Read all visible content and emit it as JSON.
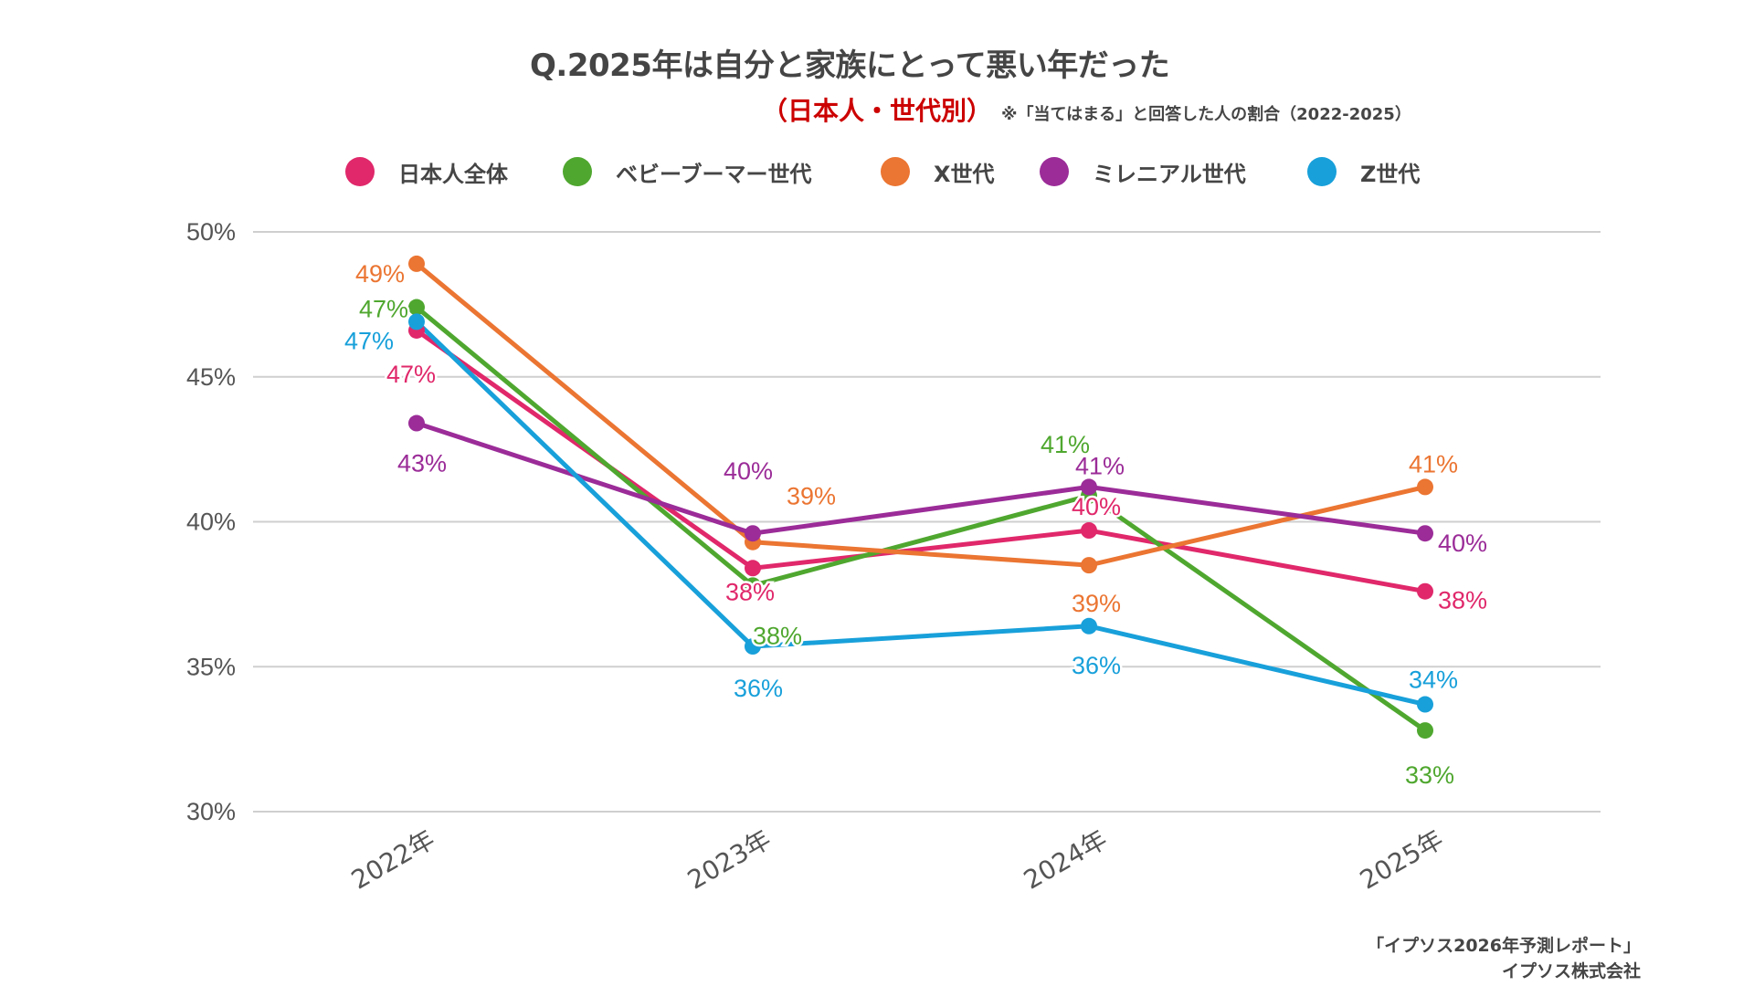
{
  "header": {
    "title": "Q.2025年は自分と家族にとって悪い年だった",
    "subtitle": "（日本人・世代別）",
    "note": "※「当てはまる」と回答した人の割合（2022-2025）"
  },
  "footer": {
    "line1": "「イプソス2026年予測レポート」",
    "line2": "イプソス株式会社"
  },
  "chart_data": {
    "type": "line",
    "title": "Q.2025年は自分と家族にとって悪い年だった",
    "subtitle": "（日本人・世代別）※「当てはまる」と回答した人の割合（2022-2025）",
    "xlabel": "",
    "ylabel": "",
    "categories": [
      "2022年",
      "2023年",
      "2024年",
      "2025年"
    ],
    "ylim": [
      30,
      50
    ],
    "yticks": [
      30,
      35,
      40,
      45,
      50
    ],
    "ytick_labels": [
      "30%",
      "35%",
      "40%",
      "45%",
      "50%"
    ],
    "grid": true,
    "legend_position": "top",
    "series": [
      {
        "name": "日本人全体",
        "color": "#e0286a",
        "values": [
          46.6,
          38.4,
          39.7,
          37.6
        ],
        "labels": [
          "47%",
          "38%",
          "40%",
          "38%"
        ]
      },
      {
        "name": "ベビーブーマー世代",
        "color": "#4fa72f",
        "values": [
          47.4,
          37.8,
          40.9,
          32.8
        ],
        "labels": [
          "47%",
          "38%",
          "41%",
          "33%"
        ]
      },
      {
        "name": "X世代",
        "color": "#eb7532",
        "values": [
          48.9,
          39.3,
          38.5,
          41.2
        ],
        "labels": [
          "49%",
          "39%",
          "39%",
          "41%"
        ]
      },
      {
        "name": "ミレニアル世代",
        "color": "#9b2c98",
        "values": [
          43.4,
          39.6,
          41.2,
          39.6
        ],
        "labels": [
          "43%",
          "40%",
          "41%",
          "40%"
        ]
      },
      {
        "name": "Z世代",
        "color": "#18a0da",
        "values": [
          46.9,
          35.7,
          36.4,
          33.7
        ],
        "labels": [
          "47%",
          "36%",
          "36%",
          "34%"
        ]
      }
    ]
  }
}
